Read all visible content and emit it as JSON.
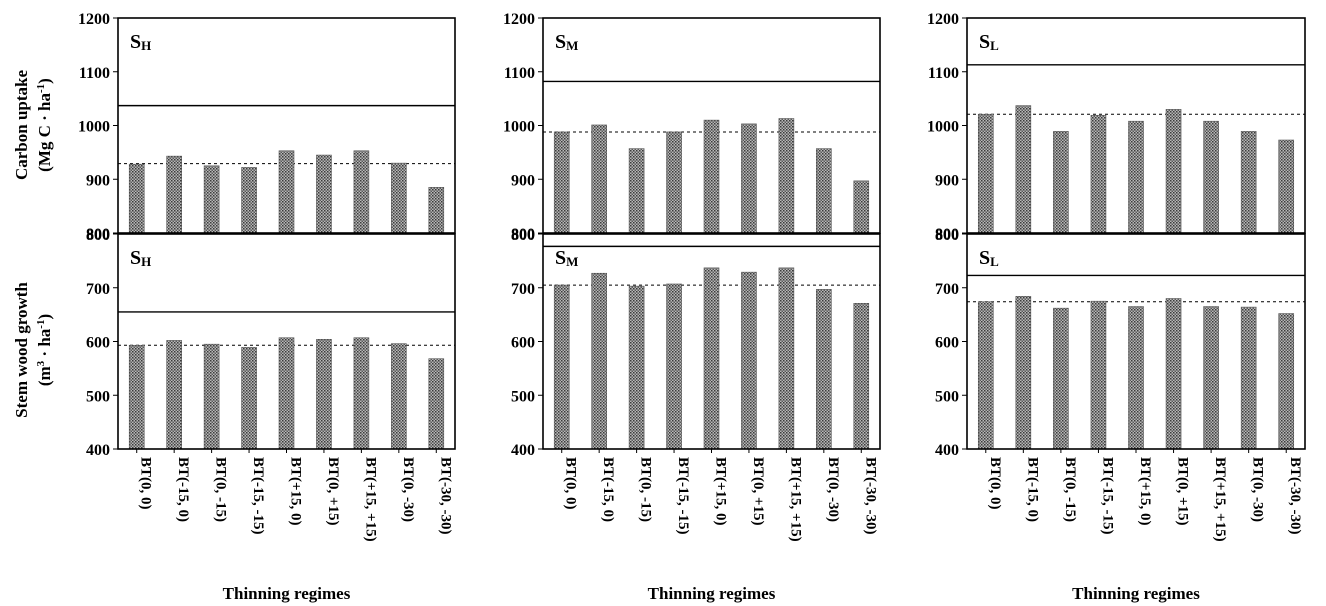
{
  "figure": {
    "row_ylabels": [
      {
        "line1": "Carbon uptake",
        "line2_pre": "(Mg C · ha",
        "line2_sup": "-1",
        "line2_post": ")"
      },
      {
        "line1": "Stem wood growth",
        "line2_pre": "(m",
        "line2_sup": "3",
        "line2_mid": " · ha",
        "line2_sup2": "-1",
        "line2_post": ")"
      }
    ],
    "xlabel": "Thinning regimes"
  },
  "chart_data": [
    {
      "type": "bar",
      "panel_label": "S",
      "panel_sub": "H",
      "xlabel": "Thinning regimes",
      "categories": [
        "BT(0, 0)",
        "BT(-15, 0)",
        "BT(0, -15)",
        "BT(-15, -15)",
        "BT(+15, 0)",
        "BT(0, +15)",
        "BT(+15, +15)",
        "BT(0, -30)",
        "BT(-30, -30)"
      ],
      "values": [
        928,
        943,
        925,
        922,
        953,
        945,
        953,
        930,
        885
      ],
      "ylim": [
        800,
        1200
      ],
      "yticks": [
        800,
        900,
        1000,
        1100,
        1200
      ],
      "solid_line": 1037,
      "dashed_line": 929
    },
    {
      "type": "bar",
      "panel_label": "S",
      "panel_sub": "M",
      "xlabel": "Thinning regimes",
      "categories": [
        "BT(0, 0)",
        "BT(-15, 0)",
        "BT(0, -15)",
        "BT(-15, -15)",
        "BT(+15, 0)",
        "BT(0, +15)",
        "BT(+15, +15)",
        "BT(0, -30)",
        "BT(-30, -30)"
      ],
      "values": [
        988,
        1001,
        957,
        988,
        1010,
        1003,
        1013,
        957,
        897
      ],
      "ylim": [
        800,
        1200
      ],
      "yticks": [
        800,
        900,
        1000,
        1100,
        1200
      ],
      "solid_line": 1082,
      "dashed_line": 988
    },
    {
      "type": "bar",
      "panel_label": "S",
      "panel_sub": "L",
      "xlabel": "Thinning regimes",
      "categories": [
        "BT(0, 0)",
        "BT(-15, 0)",
        "BT(0, -15)",
        "BT(-15, -15)",
        "BT(+15, 0)",
        "BT(0, +15)",
        "BT(+15, +15)",
        "BT(0, -30)",
        "BT(-30, -30)"
      ],
      "values": [
        1021,
        1037,
        989,
        1019,
        1008,
        1030,
        1008,
        989,
        973
      ],
      "ylim": [
        800,
        1200
      ],
      "yticks": [
        800,
        900,
        1000,
        1100,
        1200
      ],
      "solid_line": 1113,
      "dashed_line": 1021
    },
    {
      "type": "bar",
      "panel_label": "S",
      "panel_sub": "H",
      "xlabel": "Thinning regimes",
      "categories": [
        "BT(0, 0)",
        "BT(-15, 0)",
        "BT(0, -15)",
        "BT(-15, -15)",
        "BT(+15, 0)",
        "BT(0, +15)",
        "BT(+15, +15)",
        "BT(0, -30)",
        "BT(-30, -30)"
      ],
      "values": [
        593,
        602,
        595,
        589,
        607,
        604,
        607,
        596,
        568
      ],
      "ylim": [
        400,
        800
      ],
      "yticks": [
        400,
        500,
        600,
        700,
        800
      ],
      "solid_line": 655,
      "dashed_line": 593
    },
    {
      "type": "bar",
      "panel_label": "S",
      "panel_sub": "M",
      "xlabel": "Thinning regimes",
      "categories": [
        "BT(0, 0)",
        "BT(-15, 0)",
        "BT(0, -15)",
        "BT(-15, -15)",
        "BT(+15, 0)",
        "BT(0, +15)",
        "BT(+15, +15)",
        "BT(0, -30)",
        "BT(-30, -30)"
      ],
      "values": [
        705,
        727,
        703,
        707,
        737,
        729,
        737,
        697,
        671
      ],
      "ylim": [
        400,
        800
      ],
      "yticks": [
        400,
        500,
        600,
        700,
        800
      ],
      "solid_line": 777,
      "dashed_line": 705
    },
    {
      "type": "bar",
      "panel_label": "S",
      "panel_sub": "L",
      "xlabel": "Thinning regimes",
      "categories": [
        "BT(0, 0)",
        "BT(-15, 0)",
        "BT(0, -15)",
        "BT(-15, -15)",
        "BT(+15, 0)",
        "BT(0, +15)",
        "BT(+15, +15)",
        "BT(0, -30)",
        "BT(-30, -30)"
      ],
      "values": [
        674,
        684,
        662,
        675,
        665,
        680,
        665,
        664,
        652
      ],
      "ylim": [
        400,
        800
      ],
      "yticks": [
        400,
        500,
        600,
        700,
        800
      ],
      "solid_line": 723,
      "dashed_line": 674
    }
  ]
}
